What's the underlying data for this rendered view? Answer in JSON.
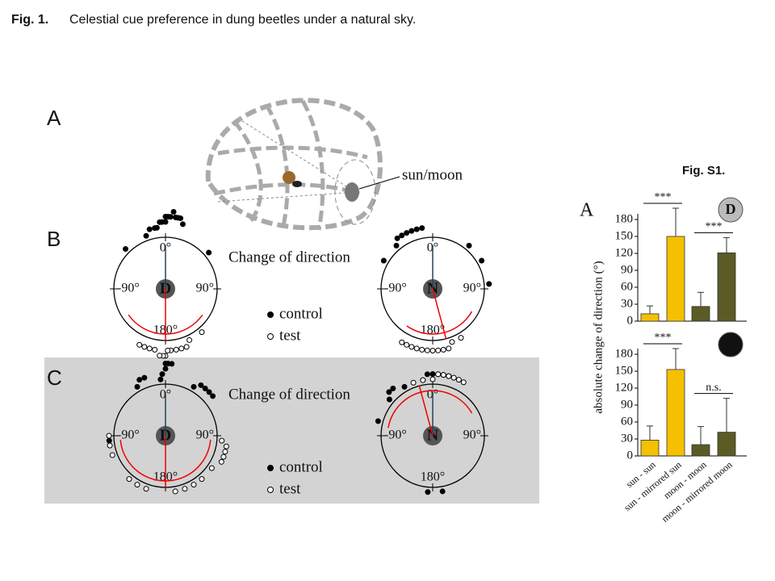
{
  "caption": {
    "label": "Fig. 1.",
    "text": "Celestial cue preference in dung beetles under a natural sky."
  },
  "panel_a": {
    "label": "A",
    "annotation": "sun/moon"
  },
  "panel_b": {
    "label": "B",
    "title": "Change of direction",
    "legend": [
      "control",
      "test"
    ],
    "circles": [
      {
        "icon": "D",
        "angle_labels": [
          "0°",
          "-90°",
          "90°",
          "180°"
        ],
        "control": [
          -45,
          -20,
          -15,
          -10,
          -8,
          -5,
          -3,
          0,
          0,
          2,
          4,
          6,
          8,
          10,
          12,
          15,
          50
        ],
        "test": [
          140,
          155,
          160,
          165,
          170,
          175,
          178,
          180,
          182,
          185,
          190,
          195,
          200,
          205
        ],
        "mean_control": 0,
        "mean_test": 180,
        "test_arc": [
          125,
          235
        ]
      },
      {
        "icon": "N",
        "angle_labels": [
          "0°",
          "-90°",
          "90°",
          "180°"
        ],
        "control": [
          -60,
          -40,
          -35,
          -30,
          -25,
          -20,
          -15,
          -10,
          40,
          60,
          85
        ],
        "test": [
          150,
          160,
          165,
          170,
          175,
          180,
          185,
          190,
          195,
          200,
          205,
          210
        ],
        "mean_control": 0,
        "mean_test": 165,
        "test_arc": [
          120,
          215
        ]
      }
    ]
  },
  "panel_c": {
    "label": "C",
    "title": "Change of direction",
    "legend": [
      "control",
      "test"
    ],
    "circles": [
      {
        "icon": "D",
        "angle_labels": [
          "0°",
          "-90°",
          "90°",
          "180°"
        ],
        "control": [
          -30,
          -25,
          -20,
          -5,
          -3,
          0,
          0,
          2,
          5,
          30,
          35,
          40,
          45,
          50,
          -95
        ],
        "test": [
          -110,
          -100,
          -90,
          95,
          100,
          105,
          110,
          115,
          125,
          140,
          150,
          160,
          170,
          200,
          210,
          220
        ],
        "mean_control": 0,
        "mean_test": 180,
        "test_arc": [
          95,
          265
        ]
      },
      {
        "icon": "N",
        "angle_labels": [
          "0°",
          "-90°",
          "90°",
          "180°"
        ],
        "control": [
          -75,
          -50,
          -45,
          -40,
          -30,
          -10,
          -5,
          0,
          5,
          10,
          15,
          170,
          185
        ],
        "test": [
          -20,
          -10,
          0,
          5,
          10,
          15,
          20,
          25,
          30
        ],
        "mean_control": 0,
        "mean_test": -15,
        "test_arc": [
          -80,
          60
        ]
      }
    ]
  },
  "supplement": {
    "title": "Fig. S1.",
    "label": "A",
    "ylabel": "absolute change of direction (°)"
  },
  "chart_data": [
    {
      "type": "bar",
      "icon": "D",
      "values": [
        13,
        150,
        26,
        121
      ],
      "errors": [
        14,
        50,
        25,
        27
      ],
      "colors": [
        "#f5c000",
        "#f5c000",
        "#5b5b26",
        "#5b5b26"
      ],
      "annotations": [
        "***",
        "***"
      ],
      "ylim": [
        0,
        190
      ],
      "yticks": [
        0,
        30,
        60,
        90,
        120,
        150,
        180
      ]
    },
    {
      "type": "bar",
      "icon": "N",
      "categories": [
        "sun - sun",
        "sun - mirrored sun",
        "moon - moon",
        "moon - mirrored moon"
      ],
      "values": [
        28,
        153,
        20,
        42
      ],
      "errors": [
        25,
        37,
        32,
        60
      ],
      "colors": [
        "#f5c000",
        "#f5c000",
        "#5b5b26",
        "#5b5b26"
      ],
      "annotations": [
        "***",
        "n.s."
      ],
      "ylim": [
        0,
        190
      ],
      "yticks": [
        0,
        30,
        60,
        90,
        120,
        150,
        180
      ]
    }
  ]
}
